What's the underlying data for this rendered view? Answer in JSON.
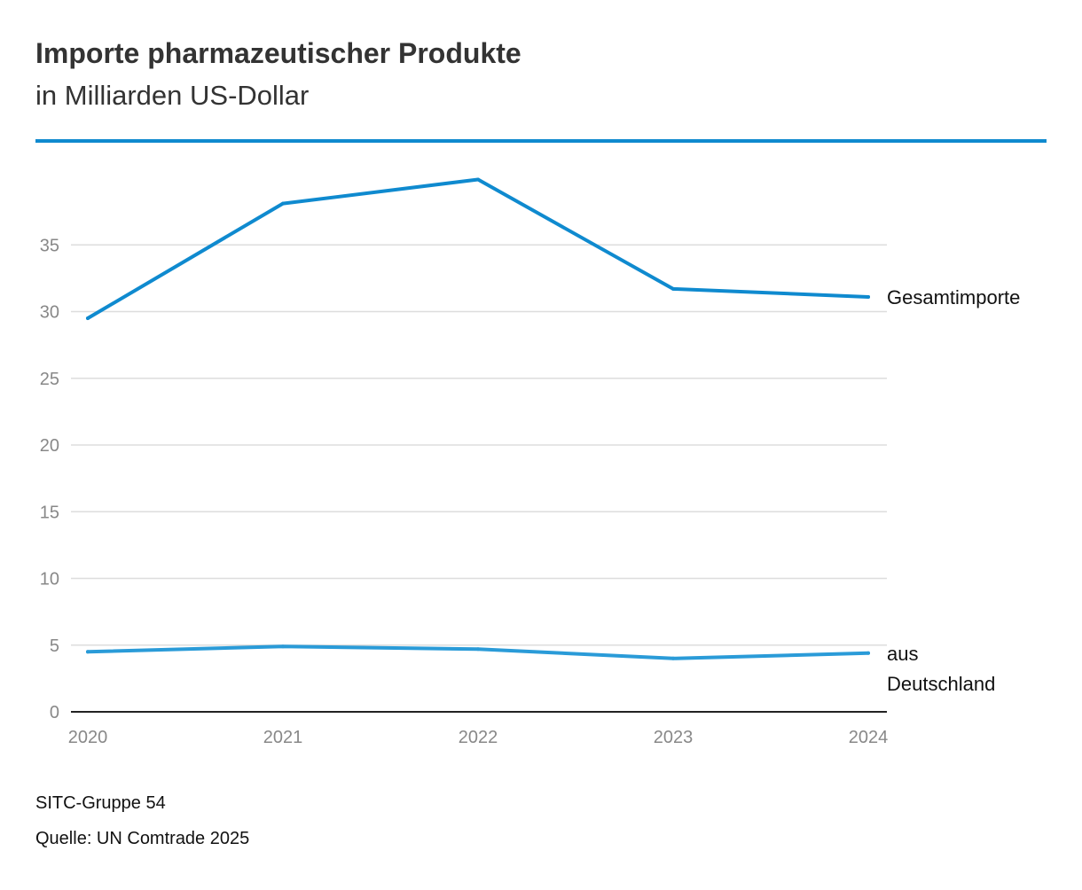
{
  "colors": {
    "accent": "#0F8ACF",
    "series_total": "#0F8ACF",
    "series_germany": "#2A9BD8",
    "grid": "#DDDDDD",
    "axis": "#222222"
  },
  "footer": {
    "note": "SITC-Gruppe 54",
    "source": "Quelle: UN Comtrade 2025"
  },
  "chart_data": {
    "type": "line",
    "title": "Importe pharmazeutischer Produkte",
    "subtitle": "in Milliarden US-Dollar",
    "x": [
      "2020",
      "2021",
      "2022",
      "2023",
      "2024"
    ],
    "series": [
      {
        "name": "Gesamtimporte",
        "label_lines": [
          "Gesamtimporte"
        ],
        "values": [
          29.5,
          38.1,
          39.9,
          31.7,
          31.1
        ]
      },
      {
        "name": "aus Deutschland",
        "label_lines": [
          "aus",
          "Deutschland"
        ],
        "values": [
          4.5,
          4.9,
          4.7,
          4.0,
          4.4
        ]
      }
    ],
    "y_ticks": [
      0,
      5,
      10,
      15,
      20,
      25,
      30,
      35
    ],
    "ylim": [
      0,
      40
    ],
    "grid": true,
    "xlabel": "",
    "ylabel": ""
  }
}
